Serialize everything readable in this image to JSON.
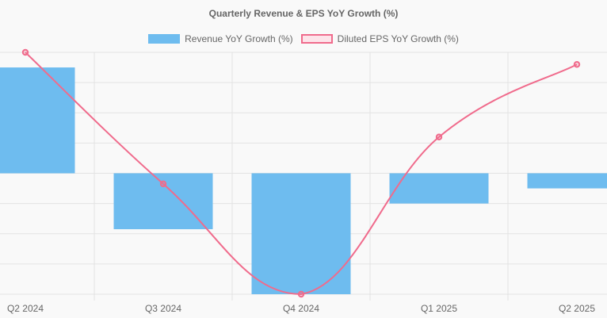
{
  "chart_data": {
    "type": "bar",
    "title": "Quarterly Revenue & EPS YoY Growth (%)",
    "categories": [
      "Q2 2024",
      "Q3 2024",
      "Q4 2024",
      "Q1 2025",
      "Q2 2025"
    ],
    "series": [
      {
        "name": "Revenue YoY Growth (%)",
        "type": "bar",
        "values": [
          35,
          -18.5,
          -40,
          -10,
          -5
        ],
        "color": "#6ebcef"
      },
      {
        "name": "Diluted EPS YoY Growth (%)",
        "type": "line",
        "values": [
          40,
          -3.5,
          -40,
          12,
          36
        ],
        "color": "#f06b8c"
      }
    ],
    "ylim": [
      -40,
      40
    ],
    "grid": true,
    "legend": "top"
  }
}
